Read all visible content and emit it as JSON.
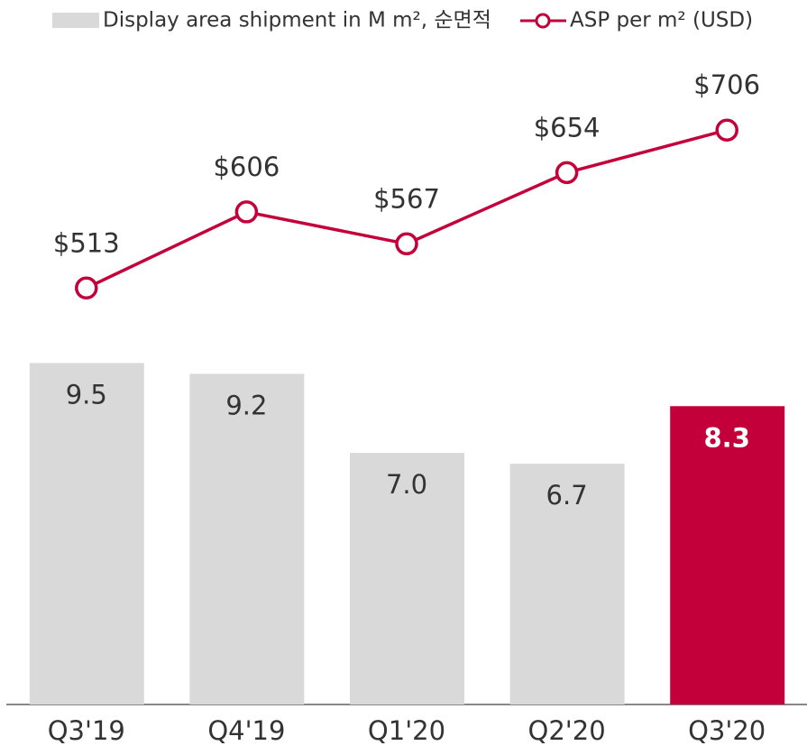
{
  "chart_data": {
    "type": "bar_line",
    "categories": [
      "Q3'19",
      "Q4'19",
      "Q1'20",
      "Q2'20",
      "Q3'20"
    ],
    "series": [
      {
        "name": "Display area shipment in M m², 순면적",
        "type": "bar",
        "color": "#d9d9d9",
        "colors": [
          "#d9d9d9",
          "#d9d9d9",
          "#d9d9d9",
          "#d9d9d9",
          "#c4003a"
        ],
        "values": [
          9.5,
          9.2,
          7.0,
          6.7,
          8.3
        ],
        "value_labels": [
          "9.5",
          "9.2",
          "7.0",
          "6.7",
          "8.3"
        ]
      },
      {
        "name": "ASP per m² (USD)",
        "type": "line",
        "axis": "y2",
        "color": "#c4003a",
        "values": [
          513,
          606,
          567,
          654,
          706
        ],
        "value_labels": [
          "$513",
          "$606",
          "$567",
          "$654",
          "$706"
        ]
      }
    ],
    "ylim": [
      0,
      19.6
    ],
    "y2lim": [
      4,
      865
    ]
  }
}
